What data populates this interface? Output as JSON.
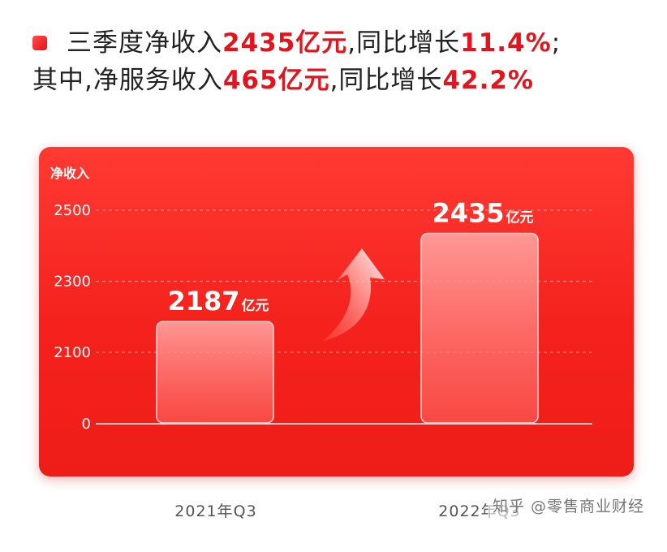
{
  "headline": {
    "line1_prefix": "三季度净收入",
    "line1_value": "2435亿元",
    "line1_mid": ",同比增长",
    "line1_pct": "11.4%",
    "line1_suffix": ";",
    "line2_prefix": "其中,净服务收入",
    "line2_value": "465亿元",
    "line2_mid": ",同比增长",
    "line2_pct": "42.2%"
  },
  "watermark": "知乎 @零售商业财经",
  "colors": {
    "accent": "#e3141e",
    "panel": "#f4211c",
    "bar_fill": "#ff8a8a",
    "gridline": "#ffb3b0"
  },
  "chart_data": {
    "type": "bar",
    "ylabel": "净收入",
    "categories": [
      "2021年Q3",
      "2022年Q3"
    ],
    "values": [
      2187,
      2435
    ],
    "value_labels": [
      {
        "number": "2187",
        "unit": "亿元"
      },
      {
        "number": "2435",
        "unit": "亿元"
      }
    ],
    "yticks": [
      0,
      2100,
      2300,
      2500
    ],
    "ylim": [
      0,
      2500
    ],
    "axis_break": true,
    "grid": true,
    "trend_arrow": "up"
  }
}
